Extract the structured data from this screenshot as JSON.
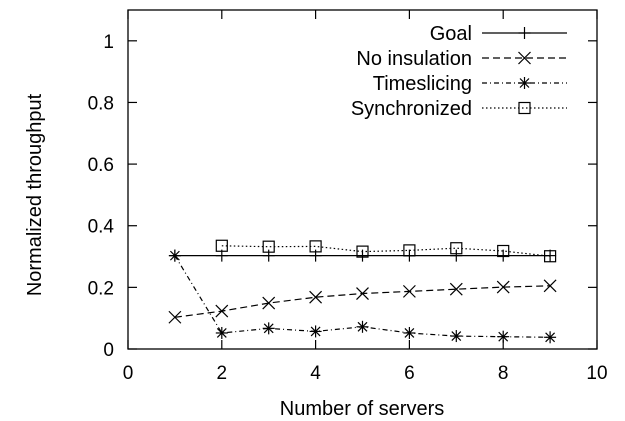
{
  "chart_data": {
    "type": "line",
    "title": "",
    "xlabel": "Number of servers",
    "ylabel": "Normalized throughput",
    "xlim": [
      0,
      10
    ],
    "ylim": [
      0,
      1.1
    ],
    "xticks": [
      0,
      2,
      4,
      6,
      8,
      10
    ],
    "yticks": [
      0,
      0.2,
      0.4,
      0.6,
      0.8,
      1
    ],
    "xtick_labels": [
      "0",
      "2",
      "4",
      "6",
      "8",
      "10"
    ],
    "ytick_labels": [
      "0",
      "0.2",
      "0.4",
      "0.6",
      "0.8",
      "1"
    ],
    "grid": false,
    "legend_position": "top-right",
    "series": [
      {
        "name": "Goal",
        "marker": "plus",
        "dash": "solid",
        "x": [
          1,
          2,
          3,
          4,
          5,
          6,
          7,
          8,
          9
        ],
        "y": [
          0.303,
          0.303,
          0.303,
          0.303,
          0.303,
          0.303,
          0.303,
          0.303,
          0.303
        ]
      },
      {
        "name": "No insulation",
        "marker": "cross",
        "dash": "dashed",
        "x": [
          1,
          2,
          3,
          4,
          5,
          6,
          7,
          8,
          9
        ],
        "y": [
          0.103,
          0.123,
          0.149,
          0.168,
          0.18,
          0.187,
          0.194,
          0.201,
          0.205
        ]
      },
      {
        "name": "Timeslicing",
        "marker": "asterisk",
        "dash": "dash-dot",
        "x": [
          1,
          2,
          3,
          4,
          5,
          6,
          7,
          8,
          9
        ],
        "y": [
          0.303,
          0.052,
          0.067,
          0.057,
          0.072,
          0.052,
          0.042,
          0.04,
          0.038
        ]
      },
      {
        "name": "Synchronized",
        "marker": "square",
        "dash": "dotted",
        "x": [
          2,
          3,
          4,
          5,
          6,
          7,
          8,
          9
        ],
        "y": [
          0.335,
          0.332,
          0.333,
          0.316,
          0.32,
          0.327,
          0.318,
          0.301
        ]
      }
    ]
  }
}
